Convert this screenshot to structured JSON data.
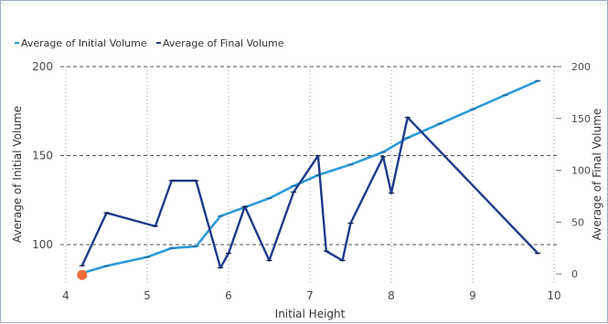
{
  "chart_data": {
    "type": "line",
    "x": [
      4.2,
      4.5,
      5.1,
      5.3,
      5.6,
      5.9,
      6.0,
      6.2,
      6.5,
      6.8,
      7.1,
      7.2,
      7.4,
      7.5,
      7.9,
      8.0,
      8.2,
      9.8
    ],
    "series": [
      {
        "name": "Average of Initial Volume",
        "axis": "left",
        "color": "#2e9ad9",
        "x": [
          4.2,
          4.5,
          5.0,
          5.3,
          5.6,
          5.9,
          6.2,
          6.5,
          6.8,
          7.1,
          7.5,
          7.9,
          8.2,
          8.6,
          9.0,
          9.4,
          9.8
        ],
        "values": [
          84,
          88,
          93,
          98,
          99,
          116,
          121,
          126,
          133,
          139,
          145,
          152,
          160,
          168,
          176,
          184,
          192
        ]
      },
      {
        "name": "Average of Final Volume",
        "axis": "right",
        "color": "#1f3a8a",
        "x": [
          4.2,
          4.5,
          5.1,
          5.3,
          5.6,
          5.9,
          6.0,
          6.2,
          6.5,
          6.8,
          7.1,
          7.2,
          7.4,
          7.5,
          7.9,
          8.0,
          8.2,
          9.8
        ],
        "values": [
          8,
          59,
          46,
          90,
          90,
          6,
          20,
          65,
          13,
          79,
          114,
          22,
          13,
          49,
          113,
          78,
          151,
          20
        ]
      }
    ],
    "xlabel": "Initial Height",
    "ylabel_left": "Average of Initial Volume",
    "ylabel_right": "Average of Final Volume",
    "xlim": [
      4,
      10
    ],
    "ylim_left": [
      80,
      200
    ],
    "ylim_right": [
      -6,
      200
    ],
    "xticks": [
      "4",
      "5",
      "6",
      "7",
      "8",
      "9",
      "10"
    ],
    "yticks_left": [
      "200",
      "150",
      "100"
    ],
    "yticks_right": [
      "200",
      "150",
      "100",
      "50",
      "0"
    ],
    "grid": true,
    "legend_position": "top-left",
    "highlight_marker_color": "#f26b3a"
  }
}
